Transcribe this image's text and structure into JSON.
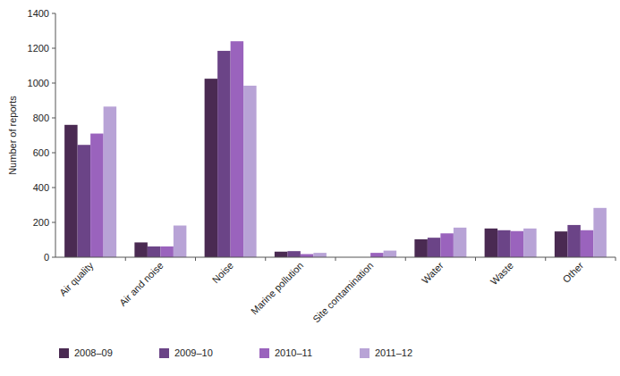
{
  "chart_data": {
    "type": "bar",
    "y_label": "Number of reports",
    "categories": [
      "Air quality",
      "Air and noise",
      "Noise",
      "Marine pollution",
      "Site contamination",
      "Water",
      "Waste",
      "Other"
    ],
    "series": [
      {
        "name": "2008–09",
        "color": "#4a2a52",
        "values": [
          760,
          85,
          1025,
          32,
          null,
          103,
          165,
          148
        ]
      },
      {
        "name": "2009–10",
        "color": "#6b4487",
        "values": [
          645,
          62,
          1185,
          35,
          null,
          112,
          155,
          185
        ]
      },
      {
        "name": "2010–11",
        "color": "#9a63bd",
        "values": [
          710,
          62,
          1240,
          18,
          25,
          137,
          150,
          155
        ]
      },
      {
        "name": "2011–12",
        "color": "#b8a3d6",
        "values": [
          865,
          182,
          985,
          25,
          38,
          170,
          165,
          283
        ]
      }
    ],
    "ylim": [
      0,
      1400
    ],
    "yticks": [
      0,
      200,
      400,
      600,
      800,
      1000,
      1200,
      1400
    ],
    "grid": false,
    "legend": "bottom-left"
  }
}
